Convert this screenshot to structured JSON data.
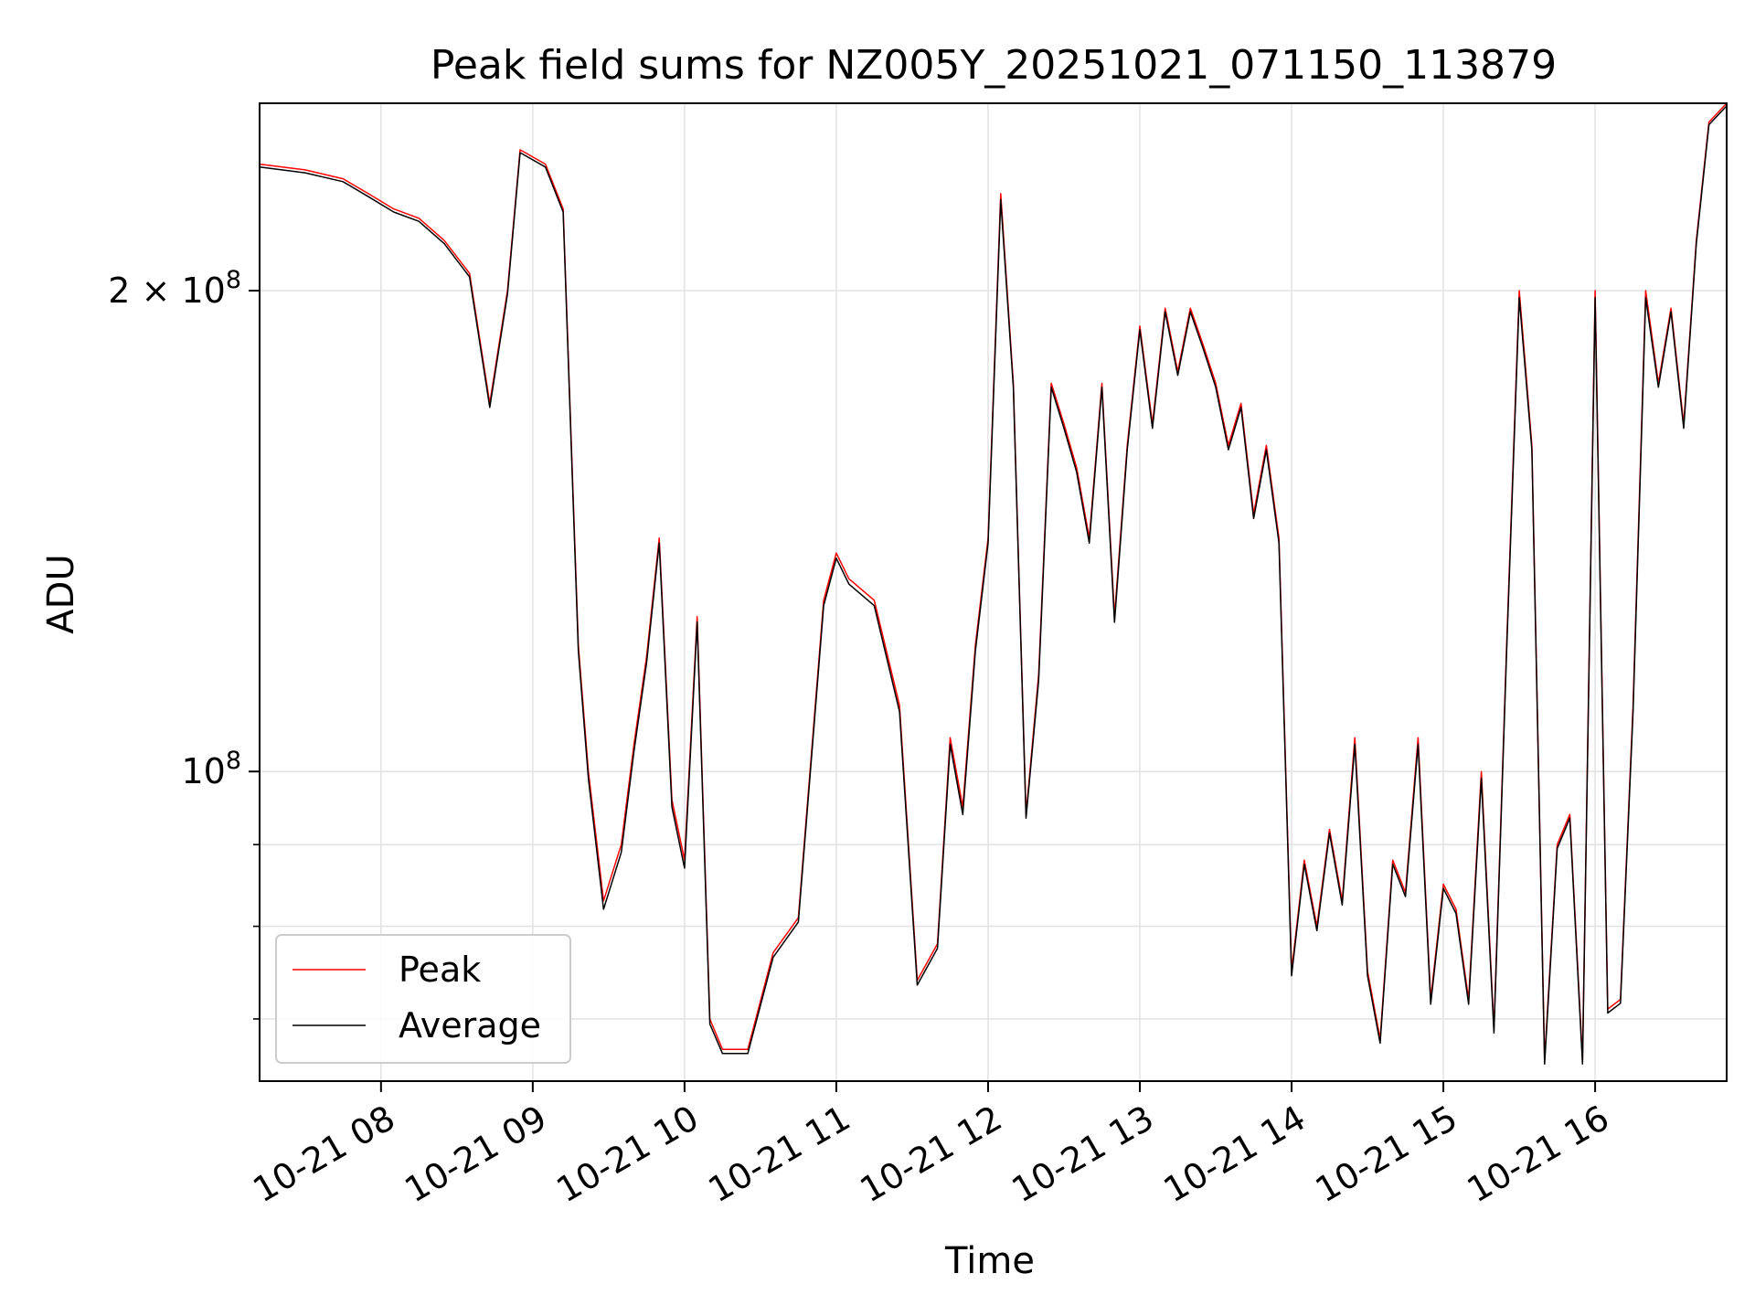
{
  "chart_data": {
    "type": "line",
    "title": "Peak field sums for NZ005Y_20251021_071150_113879",
    "xlabel": "Time",
    "ylabel": "ADU",
    "y_scale": "log",
    "ylim": [
      64000000,
      262000000
    ],
    "xlim": [
      "2025-10-21 07:12",
      "2025-10-21 16:52"
    ],
    "grid": true,
    "legend_position": "lower-left",
    "x_ticks": [
      "10-21 08",
      "10-21 09",
      "10-21 10",
      "10-21 11",
      "10-21 12",
      "10-21 13",
      "10-21 14",
      "10-21 15",
      "10-21 16"
    ],
    "x_tick_times": [
      "2025-10-21 08:00",
      "2025-10-21 09:00",
      "2025-10-21 10:00",
      "2025-10-21 11:00",
      "2025-10-21 12:00",
      "2025-10-21 13:00",
      "2025-10-21 14:00",
      "2025-10-21 15:00",
      "2025-10-21 16:00"
    ],
    "y_ticks": [
      {
        "value": 100000000,
        "label": "10^8",
        "base": "10",
        "exp": "8"
      },
      {
        "value": 200000000,
        "label": "2 × 10^8",
        "base": "2 × 10",
        "exp": "8"
      }
    ],
    "y_minor_ticks": [
      70000000,
      80000000,
      90000000
    ],
    "x": [
      "2025-10-21 07:12",
      "2025-10-21 07:30",
      "2025-10-21 07:45",
      "2025-10-21 07:55",
      "2025-10-21 08:05",
      "2025-10-21 08:15",
      "2025-10-21 08:25",
      "2025-10-21 08:35",
      "2025-10-21 08:43",
      "2025-10-21 08:50",
      "2025-10-21 08:55",
      "2025-10-21 09:05",
      "2025-10-21 09:12",
      "2025-10-21 09:18",
      "2025-10-21 09:22",
      "2025-10-21 09:28",
      "2025-10-21 09:35",
      "2025-10-21 09:40",
      "2025-10-21 09:45",
      "2025-10-21 09:50",
      "2025-10-21 09:55",
      "2025-10-21 10:00",
      "2025-10-21 10:05",
      "2025-10-21 10:10",
      "2025-10-21 10:15",
      "2025-10-21 10:25",
      "2025-10-21 10:35",
      "2025-10-21 10:45",
      "2025-10-21 10:55",
      "2025-10-21 11:00",
      "2025-10-21 11:05",
      "2025-10-21 11:15",
      "2025-10-21 11:25",
      "2025-10-21 11:32",
      "2025-10-21 11:40",
      "2025-10-21 11:45",
      "2025-10-21 11:50",
      "2025-10-21 11:55",
      "2025-10-21 12:00",
      "2025-10-21 12:05",
      "2025-10-21 12:10",
      "2025-10-21 12:15",
      "2025-10-21 12:20",
      "2025-10-21 12:25",
      "2025-10-21 12:30",
      "2025-10-21 12:35",
      "2025-10-21 12:40",
      "2025-10-21 12:45",
      "2025-10-21 12:50",
      "2025-10-21 12:55",
      "2025-10-21 13:00",
      "2025-10-21 13:05",
      "2025-10-21 13:10",
      "2025-10-21 13:15",
      "2025-10-21 13:20",
      "2025-10-21 13:25",
      "2025-10-21 13:30",
      "2025-10-21 13:35",
      "2025-10-21 13:40",
      "2025-10-21 13:45",
      "2025-10-21 13:50",
      "2025-10-21 13:55",
      "2025-10-21 14:00",
      "2025-10-21 14:05",
      "2025-10-21 14:10",
      "2025-10-21 14:15",
      "2025-10-21 14:20",
      "2025-10-21 14:25",
      "2025-10-21 14:30",
      "2025-10-21 14:35",
      "2025-10-21 14:40",
      "2025-10-21 14:45",
      "2025-10-21 14:50",
      "2025-10-21 14:55",
      "2025-10-21 15:00",
      "2025-10-21 15:05",
      "2025-10-21 15:10",
      "2025-10-21 15:15",
      "2025-10-21 15:20",
      "2025-10-21 15:25",
      "2025-10-21 15:30",
      "2025-10-21 15:35",
      "2025-10-21 15:40",
      "2025-10-21 15:45",
      "2025-10-21 15:50",
      "2025-10-21 15:55",
      "2025-10-21 16:00",
      "2025-10-21 16:05",
      "2025-10-21 16:10",
      "2025-10-21 16:15",
      "2025-10-21 16:20",
      "2025-10-21 16:25",
      "2025-10-21 16:30",
      "2025-10-21 16:35",
      "2025-10-21 16:40",
      "2025-10-21 16:45",
      "2025-10-21 16:52"
    ],
    "series": [
      {
        "name": "Peak",
        "color": "#ff0000",
        "values": [
          240000000,
          238000000,
          235000000,
          230000000,
          225000000,
          222000000,
          215000000,
          205000000,
          170000000,
          200000000,
          245000000,
          240000000,
          225000000,
          120000000,
          100000000,
          83000000,
          90000000,
          104000000,
          118000000,
          140000000,
          96000000,
          88000000,
          125000000,
          70000000,
          67000000,
          67000000,
          77000000,
          81000000,
          128000000,
          137000000,
          132000000,
          128000000,
          110000000,
          74000000,
          78000000,
          105000000,
          95000000,
          120000000,
          140000000,
          230000000,
          175000000,
          94000000,
          115000000,
          175000000,
          165000000,
          155000000,
          140000000,
          175000000,
          125000000,
          160000000,
          190000000,
          165000000,
          195000000,
          178000000,
          195000000,
          185000000,
          175000000,
          160000000,
          170000000,
          145000000,
          160000000,
          140000000,
          75000000,
          88000000,
          80000000,
          92000000,
          83000000,
          105000000,
          75000000,
          68000000,
          88000000,
          84000000,
          105000000,
          72000000,
          85000000,
          82000000,
          72000000,
          100000000,
          69000000,
          120000000,
          200000000,
          160000000,
          66000000,
          90000000,
          94000000,
          66000000,
          200000000,
          71000000,
          72000000,
          110000000,
          200000000,
          175000000,
          195000000,
          165000000,
          215000000,
          255000000,
          262000000
        ]
      },
      {
        "name": "Average",
        "color": "#000000",
        "values": [
          239000000,
          237000000,
          234000000,
          229000000,
          224000000,
          221000000,
          214000000,
          204000000,
          169000000,
          199000000,
          244000000,
          239000000,
          224000000,
          119000000,
          99000000,
          82000000,
          89000000,
          103000000,
          117000000,
          139000000,
          95000000,
          87000000,
          124000000,
          69500000,
          66600000,
          66600000,
          76500000,
          80500000,
          127000000,
          136000000,
          131000000,
          127000000,
          109000000,
          73500000,
          77500000,
          104000000,
          94000000,
          119000000,
          139000000,
          228000000,
          174000000,
          93500000,
          114000000,
          174000000,
          164000000,
          154000000,
          139000000,
          174000000,
          124000000,
          159000000,
          189000000,
          164000000,
          194000000,
          177000000,
          194000000,
          184000000,
          174000000,
          159000000,
          169000000,
          144000000,
          159000000,
          139000000,
          74500000,
          87500000,
          79500000,
          91500000,
          82500000,
          104000000,
          74500000,
          67600000,
          87500000,
          83500000,
          104000000,
          71500000,
          84500000,
          81500000,
          71500000,
          99000000,
          68600000,
          119000000,
          198000000,
          159000000,
          65600000,
          89500000,
          93500000,
          65600000,
          198000000,
          70600000,
          71600000,
          109000000,
          198000000,
          174000000,
          194000000,
          164000000,
          214000000,
          254000000,
          261000000
        ]
      }
    ]
  }
}
